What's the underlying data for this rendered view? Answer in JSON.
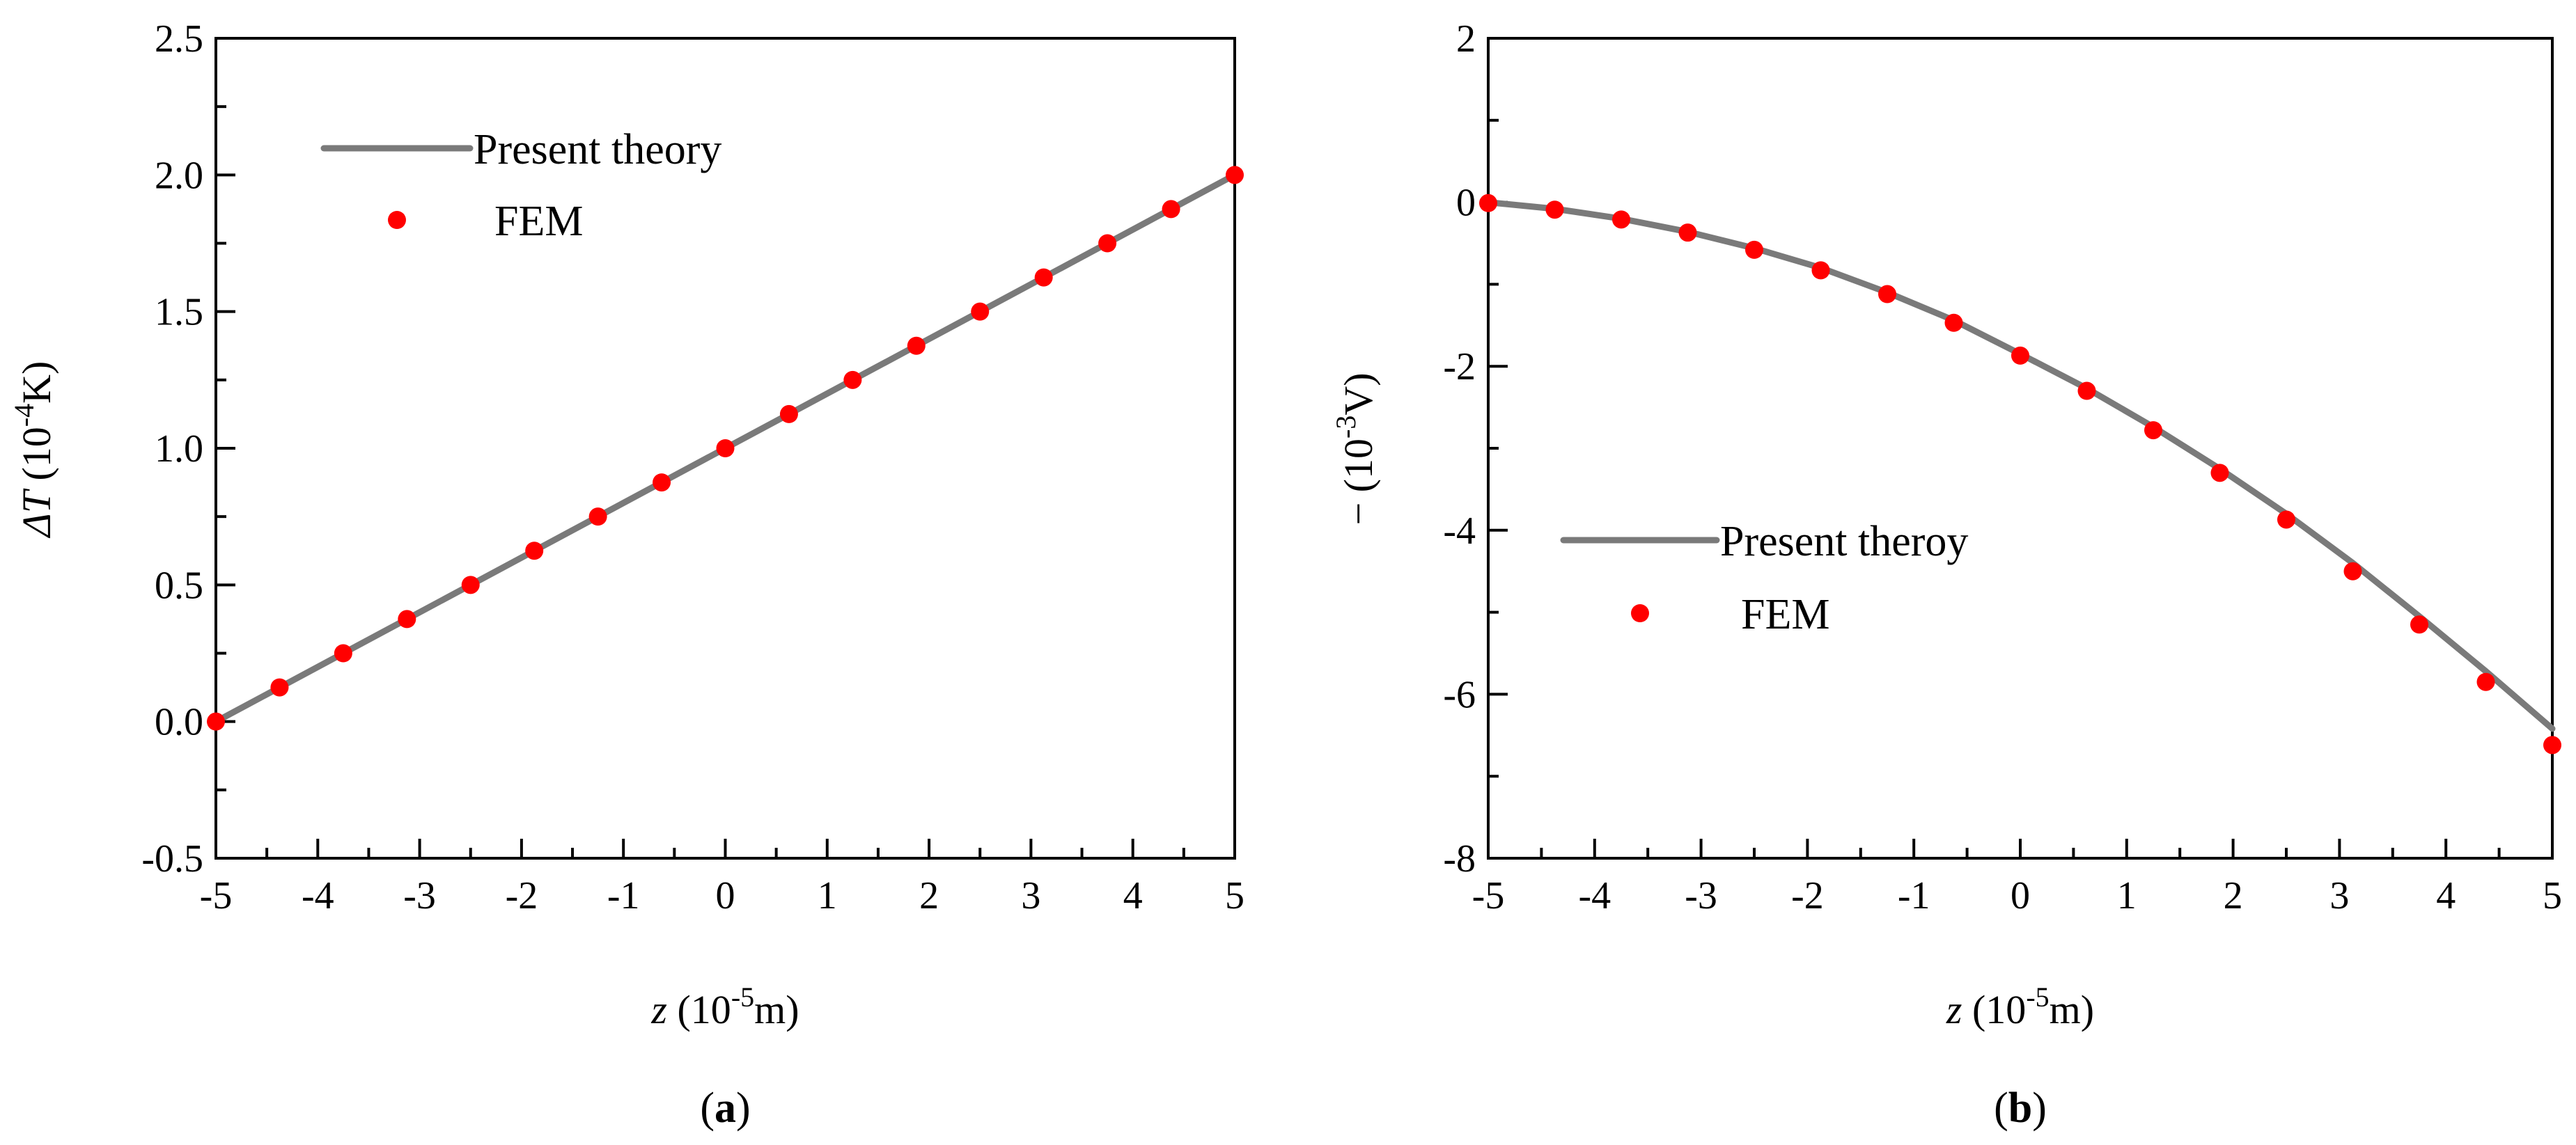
{
  "chart_data": [
    {
      "type": "line",
      "panel_caption": {
        "open": "(",
        "letter": "a",
        "close": ")"
      },
      "xlabel": {
        "symbol": "z",
        "text": " (10",
        "exp": "-5",
        "unit": "m)"
      },
      "ylabel": {
        "symbol": "ΔT",
        "text": " (10",
        "exp": "-4",
        "unit": "K)"
      },
      "xlim": [
        -5,
        5
      ],
      "ylim": [
        -0.5,
        2.5
      ],
      "xticks": [
        "-5",
        "-4",
        "-3",
        "-2",
        "-1",
        "0",
        "1",
        "2",
        "3",
        "4",
        "5"
      ],
      "yticks": [
        "-0.5",
        "0.0",
        "0.5",
        "1.0",
        "1.5",
        "2.0",
        "2.5"
      ],
      "legend": {
        "position": "top-left",
        "line_label": "Present theory",
        "marker_label": "FEM"
      },
      "series": [
        {
          "name": "Present theory",
          "kind": "line",
          "color": "#7a7a7a",
          "x": [
            -5,
            5
          ],
          "y": [
            0.0,
            2.0
          ]
        },
        {
          "name": "FEM",
          "kind": "scatter",
          "color": "#ff0000",
          "x": [
            -5,
            -4.375,
            -3.75,
            -3.125,
            -2.5,
            -1.875,
            -1.25,
            -0.625,
            0,
            0.625,
            1.25,
            1.875,
            2.5,
            3.125,
            3.75,
            4.375,
            5
          ],
          "y": [
            0.0,
            0.125,
            0.25,
            0.375,
            0.5,
            0.625,
            0.75,
            0.875,
            1.0,
            1.125,
            1.25,
            1.375,
            1.5,
            1.625,
            1.75,
            1.875,
            2.0
          ]
        }
      ]
    },
    {
      "type": "line",
      "panel_caption": {
        "open": "(",
        "letter": "b",
        "close": ")"
      },
      "xlabel": {
        "symbol": "z",
        "text": " (10",
        "exp": "-5",
        "unit": "m)"
      },
      "ylabel": {
        "symbol": "",
        "text": "− (10",
        "exp": "-3",
        "unit": "V)"
      },
      "xlim": [
        -5,
        5
      ],
      "ylim": [
        -8,
        2
      ],
      "xticks": [
        "-5",
        "-4",
        "-3",
        "-2",
        "-1",
        "0",
        "1",
        "2",
        "3",
        "4",
        "5"
      ],
      "yticks": [
        "-8",
        "-6",
        "-4",
        "-2",
        "0",
        "2"
      ],
      "legend": {
        "position": "center-left",
        "line_label": "Present theroy",
        "marker_label": "FEM"
      },
      "series": [
        {
          "name": "Present theroy",
          "kind": "line",
          "color": "#7a7a7a",
          "x": [
            -5,
            -4.375,
            -3.75,
            -3.125,
            -2.5,
            -1.875,
            -1.25,
            -0.625,
            0,
            0.625,
            1.25,
            1.875,
            2.5,
            3.125,
            3.75,
            4.375,
            5
          ],
          "y": [
            0.0,
            -0.08,
            -0.2,
            -0.36,
            -0.56,
            -0.8,
            -1.1,
            -1.44,
            -1.85,
            -2.27,
            -2.74,
            -3.25,
            -3.8,
            -4.4,
            -5.05,
            -5.72,
            -6.42
          ]
        },
        {
          "name": "FEM",
          "kind": "scatter",
          "color": "#ff0000",
          "x": [
            -5,
            -4.375,
            -3.75,
            -3.125,
            -2.5,
            -1.875,
            -1.25,
            -0.625,
            0,
            0.625,
            1.25,
            1.875,
            2.5,
            3.125,
            3.75,
            4.375,
            5
          ],
          "y": [
            -0.01,
            -0.09,
            -0.21,
            -0.37,
            -0.58,
            -0.83,
            -1.12,
            -1.47,
            -1.87,
            -2.3,
            -2.78,
            -3.3,
            -3.87,
            -4.5,
            -5.15,
            -5.85,
            -6.62
          ]
        }
      ]
    }
  ]
}
